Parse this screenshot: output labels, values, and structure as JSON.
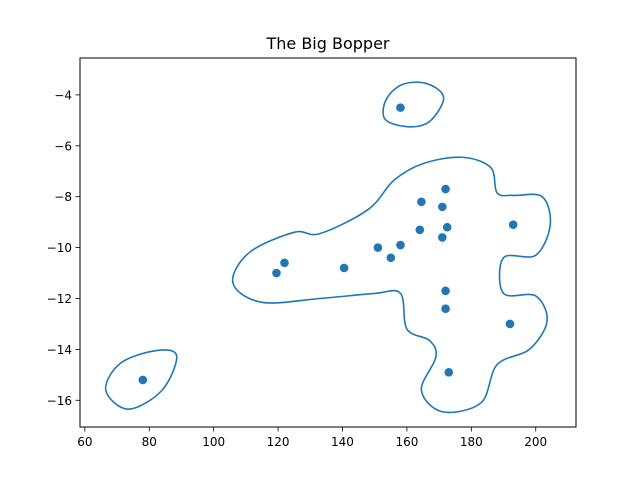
{
  "chart_data": {
    "type": "scatter",
    "title": "The Big Bopper",
    "xlabel": "",
    "ylabel": "",
    "xlim": [
      58.5,
      212.5
    ],
    "ylim": [
      -17.05,
      -2.55
    ],
    "xticks": [
      60,
      80,
      100,
      120,
      140,
      160,
      180,
      200
    ],
    "yticks": [
      -16,
      -14,
      -12,
      -10,
      -8,
      -6,
      -4
    ],
    "grid": false,
    "series": [
      {
        "marker": "circle",
        "color": "#1f77b4",
        "points": [
          [
            158,
            -4.5
          ],
          [
            78,
            -15.2
          ],
          [
            119.5,
            -11.0
          ],
          [
            122,
            -10.6
          ],
          [
            140.5,
            -10.8
          ],
          [
            151,
            -10.0
          ],
          [
            155,
            -10.4
          ],
          [
            158,
            -9.9
          ],
          [
            164,
            -9.3
          ],
          [
            164.5,
            -8.2
          ],
          [
            171,
            -8.4
          ],
          [
            171,
            -9.6
          ],
          [
            172,
            -7.7
          ],
          [
            172.5,
            -9.2
          ],
          [
            172,
            -11.7
          ],
          [
            172,
            -12.4
          ],
          [
            173,
            -14.9
          ],
          [
            192,
            -13.0
          ],
          [
            193,
            -9.1
          ]
        ]
      }
    ],
    "contours": [
      {
        "color": "#1f77b4",
        "points": [
          [
            158.4,
            -3.6
          ],
          [
            166,
            -3.55
          ],
          [
            171.4,
            -4.1
          ],
          [
            167,
            -5.05
          ],
          [
            160,
            -5.25
          ],
          [
            153.2,
            -4.95
          ],
          [
            153.5,
            -4.2
          ]
        ]
      },
      {
        "color": "#1f77b4",
        "points": [
          [
            82,
            -14.05
          ],
          [
            88.5,
            -14.25
          ],
          [
            84,
            -15.6
          ],
          [
            73.5,
            -16.35
          ],
          [
            66.5,
            -15.6
          ],
          [
            71,
            -14.55
          ]
        ]
      },
      {
        "color": "#1f77b4",
        "points": [
          [
            133,
            -9.45
          ],
          [
            148,
            -8.5
          ],
          [
            156,
            -7.35
          ],
          [
            165,
            -6.7
          ],
          [
            177,
            -6.45
          ],
          [
            186,
            -6.85
          ],
          [
            188,
            -7.85
          ],
          [
            193,
            -7.95
          ],
          [
            202,
            -8.0
          ],
          [
            204.5,
            -9.1
          ],
          [
            200,
            -10.3
          ],
          [
            190,
            -10.4
          ],
          [
            190,
            -11.8
          ],
          [
            200,
            -11.9
          ],
          [
            203.5,
            -12.9
          ],
          [
            198,
            -14.0
          ],
          [
            188,
            -14.6
          ],
          [
            183,
            -16.1
          ],
          [
            171,
            -16.45
          ],
          [
            164.5,
            -15.6
          ],
          [
            169,
            -14.3
          ],
          [
            167,
            -13.65
          ],
          [
            160,
            -13.2
          ],
          [
            158,
            -11.8
          ],
          [
            150,
            -11.8
          ],
          [
            133,
            -12.0
          ],
          [
            115,
            -12.15
          ],
          [
            106,
            -11.4
          ],
          [
            111,
            -10.2
          ],
          [
            125,
            -9.4
          ]
        ]
      }
    ]
  }
}
